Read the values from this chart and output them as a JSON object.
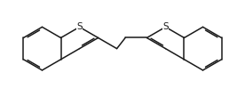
{
  "bg_color": "#ffffff",
  "line_color": "#1a1a1a",
  "line_width": 1.1,
  "dbo": 0.06,
  "figsize": [
    2.76,
    1.09
  ],
  "dpi": 100,
  "S_fontsize": 7.5,
  "xlim": [
    0,
    10
  ],
  "ylim": [
    0,
    3.949
  ],
  "bl": 0.88,
  "bcx_L": 1.72,
  "bcy_L": 1.97,
  "bcx_R": 8.28,
  "bcy_R": 1.97
}
